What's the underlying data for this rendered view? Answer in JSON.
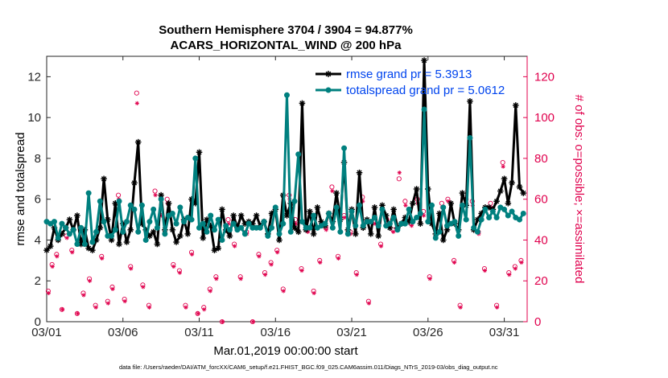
{
  "title_line1": "Southern Hemisphere 3704 / 3904 = 94.877%",
  "title_line2": "ACARS_HORIZONTAL_WIND @ 200 hPa",
  "footer": "data file: /Users/raeder/DAI/ATM_forcXX/CAM6_setup/f.e21.FHIST_BGC.f09_025.CAM6assim.011/Diags_NTrS_2019-03/obs_diag_output.nc",
  "colors": {
    "rmse": "#000000",
    "spread": "#00807f",
    "obs": "#e0004d",
    "legend_text": "#0044ee"
  },
  "chart_data": {
    "type": "line",
    "xlabel": "Mar.01,2019 00:00:00 start",
    "ylabel": "rmse and totalspread",
    "y2label": "# of obs: o=possible; ×=assimilated",
    "xlim": [
      0,
      31.5
    ],
    "ylim": [
      0,
      13
    ],
    "y2lim": [
      0,
      130
    ],
    "x_ticks": [
      {
        "value": 0,
        "label": "03/01"
      },
      {
        "value": 5,
        "label": "03/06"
      },
      {
        "value": 10,
        "label": "03/11"
      },
      {
        "value": 15,
        "label": "03/16"
      },
      {
        "value": 20,
        "label": "03/21"
      },
      {
        "value": 25,
        "label": "03/26"
      },
      {
        "value": 30,
        "label": "03/31"
      }
    ],
    "y_ticks": [
      0,
      2,
      4,
      6,
      8,
      10,
      12
    ],
    "y2_ticks": [
      0,
      20,
      40,
      60,
      80,
      100,
      120
    ],
    "legend": [
      {
        "name": "rmse",
        "label": "rmse grand pr = 5.3913"
      },
      {
        "name": "totalspread",
        "label": "totalspread grand pr = 5.0612"
      }
    ],
    "series": [
      {
        "name": "rmse",
        "x": [
          0.0,
          0.25,
          0.5,
          0.75,
          1.0,
          1.25,
          1.5,
          1.75,
          2.0,
          2.25,
          2.5,
          2.75,
          3.0,
          3.25,
          3.5,
          3.75,
          4.0,
          4.25,
          4.5,
          4.75,
          5.0,
          5.25,
          5.5,
          5.75,
          6.0,
          6.25,
          6.5,
          6.75,
          7.0,
          7.25,
          7.5,
          7.75,
          8.0,
          8.25,
          8.5,
          8.75,
          9.0,
          9.25,
          9.5,
          9.75,
          10.0,
          10.25,
          10.5,
          10.75,
          11.0,
          11.25,
          11.5,
          11.75,
          12.0,
          12.25,
          12.5,
          12.75,
          13.0,
          13.25,
          13.5,
          13.75,
          14.0,
          14.25,
          14.5,
          14.75,
          15.0,
          15.25,
          15.5,
          15.75,
          16.0,
          16.25,
          16.5,
          16.75,
          17.0,
          17.25,
          17.5,
          17.75,
          18.0,
          18.25,
          18.5,
          18.75,
          19.0,
          19.25,
          19.5,
          19.75,
          20.0,
          20.25,
          20.5,
          20.75,
          21.0,
          21.25,
          21.5,
          21.75,
          22.0,
          22.25,
          22.5,
          22.75,
          23.0,
          23.25,
          23.5,
          23.75,
          24.0,
          24.25,
          24.5,
          24.75,
          25.0,
          25.25,
          25.5,
          25.75,
          26.0,
          26.25,
          26.5,
          26.75,
          27.0,
          27.25,
          27.5,
          27.75,
          28.0,
          28.25,
          28.5,
          28.75,
          29.0,
          29.25,
          29.5,
          29.75,
          30.0,
          30.25,
          30.5,
          30.75,
          31.0,
          31.25
        ],
        "y": [
          3.5,
          3.7,
          4.6,
          4.0,
          4.3,
          4.6,
          5.0,
          4.5,
          5.2,
          3.8,
          4.5,
          3.6,
          3.5,
          4.0,
          4.6,
          7.0,
          5.0,
          4.0,
          5.8,
          3.8,
          4.8,
          3.9,
          4.5,
          6.8,
          8.8,
          4.8,
          4.5,
          4.2,
          4.4,
          3.8,
          6.2,
          4.5,
          5.8,
          4.5,
          3.9,
          4.2,
          5.0,
          4.3,
          6.0,
          5.8,
          8.3,
          4.1,
          5.0,
          4.7,
          3.5,
          3.6,
          5.5,
          4.5,
          4.2,
          5.2,
          4.6,
          5.2,
          4.8,
          4.9,
          4.8,
          5.2,
          4.7,
          4.9,
          4.3,
          5.3,
          5.5,
          4.0,
          6.2,
          5.2,
          5.8,
          4.6,
          4.4,
          10.7,
          4.5,
          5.4,
          4.3,
          5.6,
          4.9,
          4.7,
          5.3,
          4.9,
          6.3,
          5.0,
          7.8,
          4.5,
          5.5,
          4.3,
          7.3,
          4.6,
          5.0,
          4.3,
          5.6,
          4.2,
          5.7,
          5.2,
          4.6,
          5.5,
          4.6,
          4.8,
          5.1,
          4.9,
          5.8,
          6.5,
          4.8,
          12.8,
          6.5,
          4.8,
          4.3,
          5.3,
          4.0,
          4.5,
          5.8,
          4.8,
          4.5,
          6.3,
          5.7,
          10.8,
          4.5,
          5.0,
          5.3,
          5.6,
          5.6,
          5.5,
          5.9,
          6.4,
          7.0,
          5.8,
          6.8,
          10.6,
          6.6,
          6.3
        ]
      },
      {
        "name": "totalspread",
        "x": [
          0.0,
          0.25,
          0.5,
          0.75,
          1.0,
          1.25,
          1.5,
          1.75,
          2.0,
          2.25,
          2.5,
          2.75,
          3.0,
          3.25,
          3.5,
          3.75,
          4.0,
          4.25,
          4.5,
          4.75,
          5.0,
          5.25,
          5.5,
          5.75,
          6.0,
          6.25,
          6.5,
          6.75,
          7.0,
          7.25,
          7.5,
          7.75,
          8.0,
          8.25,
          8.5,
          8.75,
          9.0,
          9.25,
          9.5,
          9.75,
          10.0,
          10.25,
          10.5,
          10.75,
          11.0,
          11.25,
          11.5,
          11.75,
          12.0,
          12.25,
          12.5,
          12.75,
          13.0,
          13.25,
          13.5,
          13.75,
          14.0,
          14.25,
          14.5,
          14.75,
          15.0,
          15.25,
          15.5,
          15.75,
          16.0,
          16.25,
          16.5,
          16.75,
          17.0,
          17.25,
          17.5,
          17.75,
          18.0,
          18.25,
          18.5,
          18.75,
          19.0,
          19.25,
          19.5,
          19.75,
          20.0,
          20.25,
          20.5,
          20.75,
          21.0,
          21.25,
          21.5,
          21.75,
          22.0,
          22.25,
          22.5,
          22.75,
          23.0,
          23.25,
          23.5,
          23.75,
          24.0,
          24.25,
          24.5,
          24.75,
          25.0,
          25.25,
          25.5,
          25.75,
          26.0,
          26.25,
          26.5,
          26.75,
          27.0,
          27.25,
          27.5,
          27.75,
          28.0,
          28.25,
          28.5,
          28.75,
          29.0,
          29.25,
          29.5,
          29.75,
          30.0,
          30.25,
          30.5,
          30.75,
          31.0,
          31.25
        ],
        "y": [
          4.9,
          4.8,
          4.9,
          4.1,
          4.8,
          4.6,
          4.3,
          4.5,
          3.8,
          4.6,
          3.8,
          6.3,
          3.9,
          4.4,
          5.9,
          4.9,
          4.2,
          4.2,
          4.5,
          5.9,
          4.4,
          4.9,
          5.7,
          5.5,
          4.4,
          5.7,
          4.0,
          4.9,
          5.5,
          4.6,
          6.0,
          4.3,
          5.2,
          5.3,
          4.8,
          5.6,
          4.9,
          5.1,
          5.0,
          8.0,
          4.6,
          4.8,
          4.4,
          5.2,
          4.5,
          5.0,
          4.0,
          4.7,
          4.5,
          4.8,
          4.5,
          4.6,
          4.3,
          4.8,
          4.6,
          4.6,
          4.6,
          4.9,
          4.2,
          4.6,
          5.6,
          4.3,
          4.8,
          11.1,
          4.4,
          5.9,
          8.2,
          4.9,
          4.6,
          4.6,
          5.2,
          4.6,
          4.7,
          4.8,
          5.3,
          4.6,
          5.6,
          4.4,
          8.5,
          4.3,
          5.4,
          4.7,
          5.7,
          4.7,
          4.9,
          4.9,
          5.1,
          4.7,
          5.5,
          4.7,
          4.8,
          5.1,
          4.5,
          4.8,
          4.8,
          5.5,
          4.9,
          5.1,
          5.3,
          10.4,
          4.9,
          5.7,
          4.1,
          4.4,
          5.6,
          4.7,
          4.8,
          4.9,
          4.2,
          5.7,
          5.0,
          9.0,
          4.6,
          4.4,
          5.0,
          5.5,
          5.1,
          5.4,
          5.1,
          5.6,
          5.5,
          5.2,
          5.4,
          5.1,
          5.0,
          5.3
        ]
      }
    ],
    "obs_possible": {
      "x": [
        0.1,
        0.35,
        0.65,
        1.0,
        1.3,
        1.65,
        2.0,
        2.4,
        2.8,
        3.2,
        3.6,
        4.0,
        4.3,
        4.7,
        5.1,
        5.5,
        5.9,
        6.3,
        6.7,
        7.1,
        7.5,
        7.9,
        8.3,
        8.7,
        9.1,
        9.5,
        9.9,
        10.3,
        10.7,
        11.1,
        11.5,
        11.9,
        12.3,
        12.7,
        13.1,
        13.5,
        13.9,
        14.3,
        14.7,
        15.1,
        15.5,
        15.9,
        16.3,
        16.7,
        17.1,
        17.5,
        17.9,
        18.3,
        18.7,
        19.1,
        19.5,
        19.9,
        20.3,
        20.7,
        21.1,
        21.5,
        21.9,
        22.3,
        22.7,
        23.1,
        23.5,
        23.9,
        24.3,
        24.7,
        25.1,
        25.5,
        25.9,
        26.3,
        26.7,
        27.1,
        27.5,
        27.9,
        28.3,
        28.7,
        29.1,
        29.5,
        29.9,
        30.3,
        30.7,
        31.1
      ],
      "y": [
        15,
        28,
        33,
        6,
        42,
        35,
        4,
        14,
        21,
        8,
        32,
        10,
        17,
        62,
        11,
        27,
        112,
        18,
        8,
        64,
        54,
        60,
        28,
        25,
        8,
        34,
        4,
        7,
        16,
        22,
        0,
        50,
        38,
        22,
        44,
        0,
        33,
        24,
        29,
        35,
        16,
        62,
        50,
        26,
        45,
        15,
        30,
        46,
        66,
        32,
        52,
        44,
        24,
        61,
        10,
        49,
        38,
        50,
        45,
        70,
        59,
        48,
        60,
        54,
        22,
        45,
        58,
        60,
        30,
        8,
        60,
        59,
        44,
        26,
        58,
        8,
        78,
        24,
        27,
        30
      ]
    },
    "obs_assimilated": {
      "x": [
        0.1,
        0.35,
        0.65,
        1.0,
        1.3,
        1.65,
        2.0,
        2.4,
        2.8,
        3.2,
        3.6,
        4.0,
        4.3,
        4.7,
        5.1,
        5.5,
        5.9,
        6.3,
        6.7,
        7.1,
        7.5,
        7.9,
        8.3,
        8.7,
        9.1,
        9.5,
        9.9,
        10.3,
        10.7,
        11.1,
        11.5,
        11.9,
        12.3,
        12.7,
        13.1,
        13.5,
        13.9,
        14.3,
        14.7,
        15.1,
        15.5,
        15.9,
        16.3,
        16.7,
        17.1,
        17.5,
        17.9,
        18.3,
        18.7,
        19.1,
        19.5,
        19.9,
        20.3,
        20.7,
        21.1,
        21.5,
        21.9,
        22.3,
        22.7,
        23.1,
        23.5,
        23.9,
        24.3,
        24.7,
        25.1,
        25.5,
        25.9,
        26.3,
        26.7,
        27.1,
        27.5,
        27.9,
        28.3,
        28.7,
        29.1,
        29.5,
        29.9,
        30.3,
        30.7,
        31.1
      ],
      "y": [
        14,
        27,
        32,
        6,
        41,
        34,
        4,
        13,
        20,
        7,
        31,
        9,
        16,
        60,
        10,
        26,
        107,
        17,
        7,
        62,
        52,
        58,
        27,
        24,
        7,
        33,
        4,
        6,
        15,
        21,
        0,
        48,
        37,
        21,
        43,
        0,
        32,
        23,
        28,
        34,
        15,
        60,
        48,
        25,
        44,
        14,
        29,
        45,
        64,
        31,
        51,
        43,
        23,
        59,
        9,
        48,
        37,
        48,
        44,
        73,
        57,
        47,
        58,
        52,
        21,
        44,
        56,
        59,
        29,
        7,
        58,
        57,
        43,
        25,
        56,
        7,
        76,
        23,
        26,
        29
      ]
    }
  }
}
